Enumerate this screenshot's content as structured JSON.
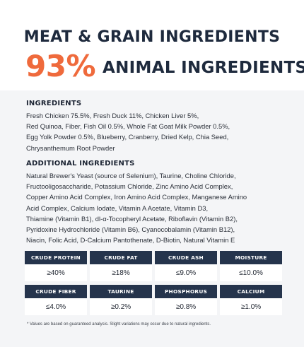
{
  "header": {
    "headline": "MEAT & GRAIN INGREDIENTS",
    "percent": "93%",
    "percent_label": "ANIMAL INGREDIENTS"
  },
  "ingredients": {
    "title": "INGREDIENTS",
    "lines": [
      "Fresh Chicken 75.5%, Fresh Duck 11%, Chicken Liver 5%,",
      "Red Quinoa, Fiber, Fish Oil 0.5%, Whole Fat Goat Milk Powder 0.5%,",
      "Egg Yolk Powder 0.5%, Blueberry, Cranberry, Dried Kelp, Chia Seed,",
      "Chrysanthemum Root Powder"
    ]
  },
  "additional": {
    "title": "ADDITIONAL INGREDIENTS",
    "lines": [
      "Natural Brewer's Yeast (source of Selenium), Taurine, Choline Chloride,",
      "Fructooligosaccharide, Potassium Chloride, Zinc Amino Acid Complex,",
      "Copper Amino Acid Complex, Iron Amino Acid Complex, Manganese Amino",
      "Acid Complex, Calcium Iodate, Vitamin A Acetate, Vitamin D3,",
      "Thiamine (Vitamin B1), dl-α-Tocopheryl Acetate, Riboflavin (Vitamin B2),",
      "Pyridoxine Hydrochloride (Vitamin B6), Cyanocobalamin (Vitamin B12),",
      "Niacin, Folic Acid, D-Calcium Pantothenate, D-Biotin, Natural Vitamin E"
    ]
  },
  "analysis": [
    [
      {
        "label": "CRUDE PROTEIN",
        "value": "≥40%"
      },
      {
        "label": "CRUDE FAT",
        "value": "≥18%"
      },
      {
        "label": "CRUDE ASH",
        "value": "≤9.0%"
      },
      {
        "label": "MOISTURE",
        "value": "≤10.0%"
      }
    ],
    [
      {
        "label": "CRUDE FIBER",
        "value": "≤4.0%"
      },
      {
        "label": "TAURINE",
        "value": "≥0.2%"
      },
      {
        "label": "PHOSPHORUS",
        "value": "≥0.8%"
      },
      {
        "label": "CALCIUM",
        "value": "≥1.0%"
      }
    ]
  ],
  "footnote": "* Values are based on guaranteed analysis. Slight variations may occur due to natural ingredients.",
  "colors": {
    "accent": "#ef6a3c",
    "navy": "#25344c",
    "background": "#f4f5f7"
  }
}
